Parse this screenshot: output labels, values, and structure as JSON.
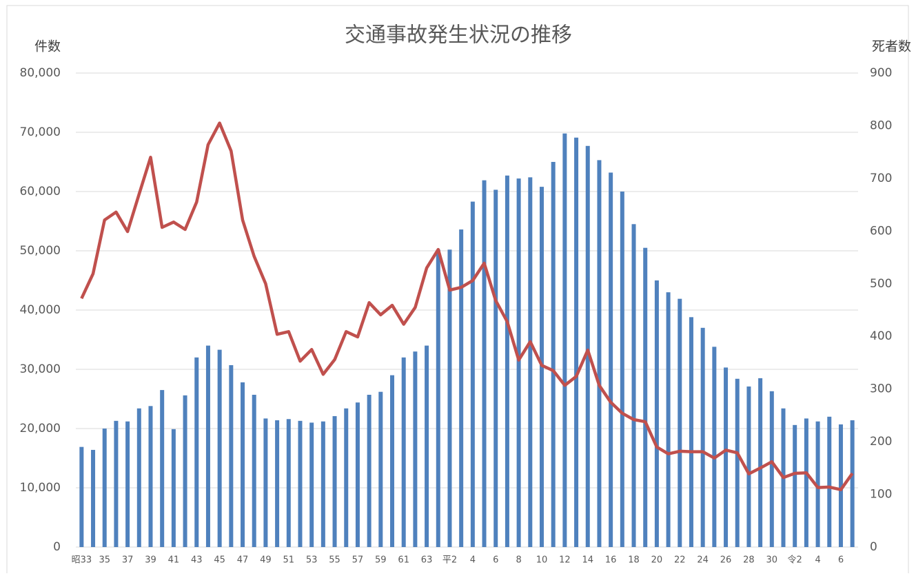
{
  "chart_data": {
    "type": "bar-line",
    "title": "交通事故発生状況の推移",
    "y_label": "件数",
    "y2_label": "死者数",
    "categories": [
      "昭33",
      null,
      "35",
      null,
      "37",
      null,
      "39",
      null,
      "41",
      null,
      "43",
      null,
      "45",
      null,
      "47",
      null,
      "49",
      null,
      "51",
      null,
      "53",
      null,
      "55",
      null,
      "57",
      null,
      "59",
      null,
      "61",
      null,
      "63",
      null,
      "平2",
      null,
      "4",
      null,
      "6",
      null,
      "8",
      null,
      "10",
      null,
      "12",
      null,
      "14",
      null,
      "16",
      null,
      "18",
      null,
      "20",
      null,
      "22",
      null,
      "24",
      null,
      "26",
      null,
      "28",
      null,
      "30",
      null,
      "令2",
      null,
      "4",
      null,
      "6",
      null
    ],
    "series": [
      {
        "type": "bar",
        "color": "#4f81bd",
        "values": [
          16900,
          16400,
          20000,
          21300,
          21200,
          23400,
          23800,
          26500,
          19900,
          25600,
          32000,
          34000,
          33300,
          30700,
          27800,
          25700,
          21700,
          21400,
          21600,
          21300,
          21000,
          21200,
          22100,
          23400,
          24400,
          25700,
          26200,
          29000,
          32000,
          33000,
          34000,
          50200,
          50200,
          53600,
          58300,
          61900,
          60300,
          62700,
          62200,
          62400,
          60800,
          65000,
          69800,
          69100,
          67700,
          65300,
          63200,
          60000,
          54500,
          50500,
          45000,
          43000,
          41900,
          38800,
          37000,
          33800,
          30300,
          28400,
          27100,
          28500,
          26300,
          23400,
          20600,
          21700,
          21200,
          22000,
          20700,
          21400
        ]
      },
      {
        "type": "line",
        "axis": "y2",
        "color": "#c0504d",
        "values": [
          472,
          519,
          621,
          636,
          599,
          670,
          740,
          607,
          617,
          603,
          655,
          764,
          805,
          752,
          621,
          552,
          500,
          404,
          409,
          353,
          375,
          328,
          356,
          409,
          399,
          464,
          441,
          459,
          423,
          455,
          530,
          565,
          488,
          493,
          506,
          539,
          468,
          428,
          355,
          390,
          345,
          335,
          307,
          324,
          374,
          307,
          275,
          254,
          242,
          238,
          190,
          177,
          182,
          181,
          181,
          169,
          184,
          179,
          139,
          150,
          162,
          132,
          140,
          141,
          113,
          114,
          109,
          140
        ]
      }
    ],
    "ylim": [
      0,
      80000
    ],
    "yticks": [
      0,
      {
        "value": 10000,
        "label": "10,000"
      },
      {
        "value": 20000,
        "label": "20,000"
      },
      {
        "value": 30000,
        "label": "30,000"
      },
      {
        "value": 40000,
        "label": "40,000"
      },
      {
        "value": 50000,
        "label": "50,000"
      },
      {
        "value": 60000,
        "label": "60,000"
      },
      {
        "value": 70000,
        "label": "70,000"
      },
      {
        "value": 80000,
        "label": "80,000"
      }
    ],
    "y2lim": [
      0,
      900
    ],
    "y2ticks": [
      0,
      100,
      200,
      300,
      400,
      500,
      600,
      700,
      800,
      900
    ],
    "grid": true
  }
}
